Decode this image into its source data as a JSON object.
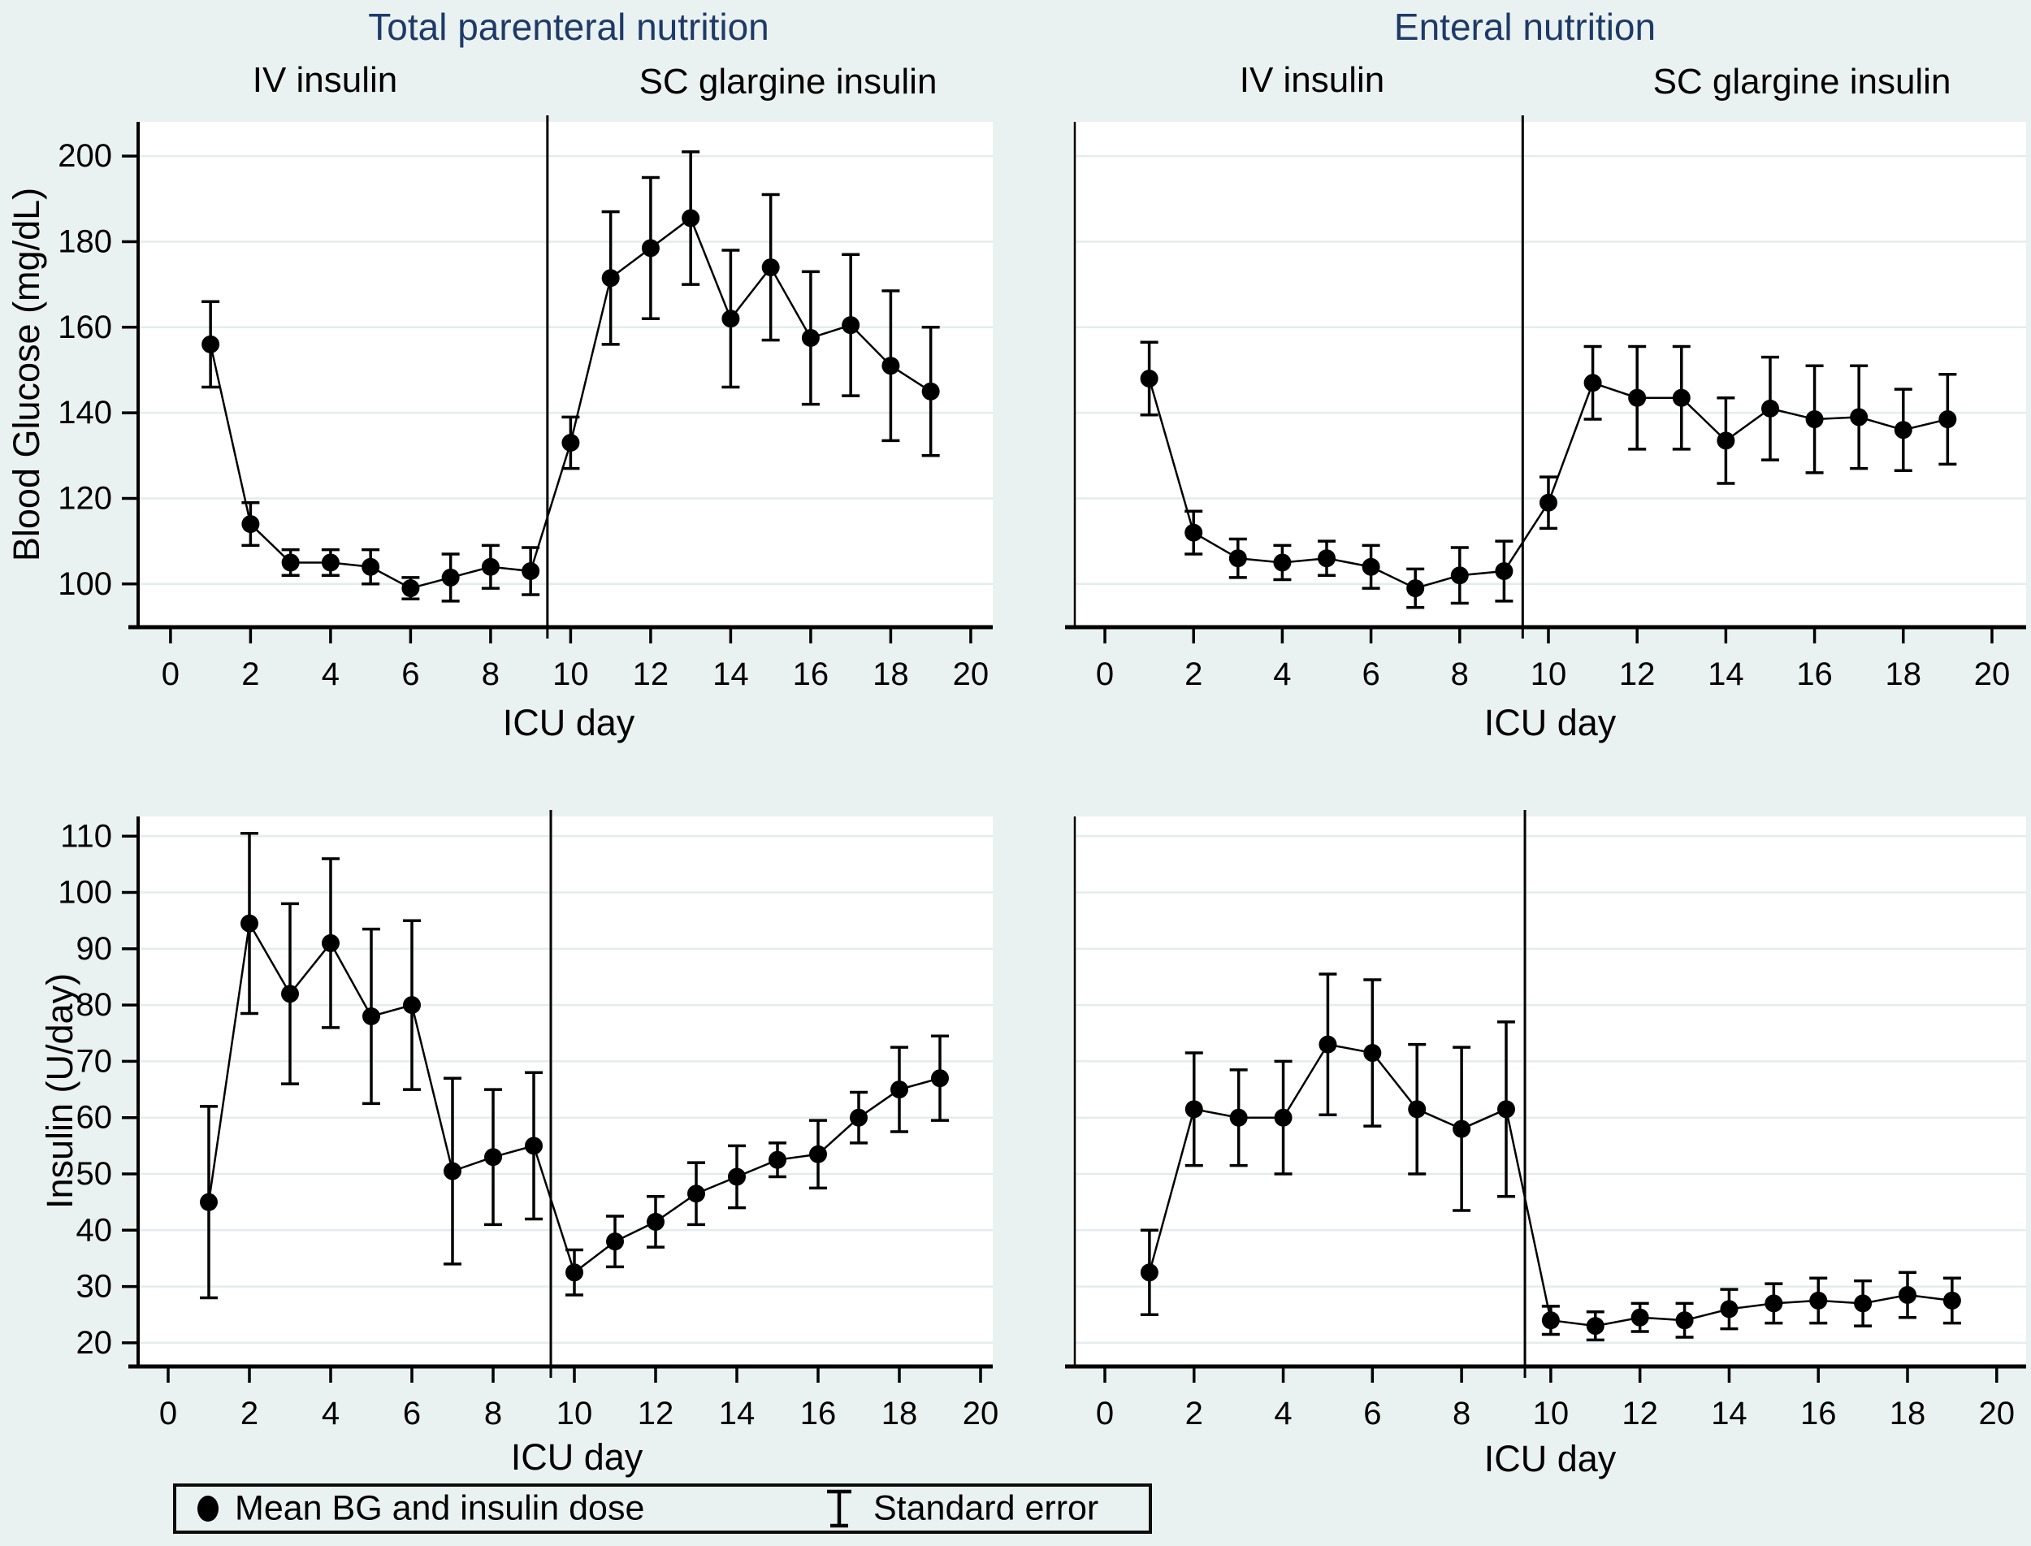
{
  "page": {
    "background": "#eaf2f1",
    "plot_background": "#ffffff",
    "grid_color": "#e3edec",
    "title_color": "#1d3a68",
    "series_color": "#000000"
  },
  "columns": [
    {
      "title": "Total parenteral nutrition"
    },
    {
      "title": "Enteral nutrition"
    }
  ],
  "legend": {
    "marker_label": "Mean BG and insulin dose",
    "error_label": "Standard error"
  },
  "chart_data": [
    {
      "id": "tpn-blood-glucose",
      "type": "line",
      "group": "Total parenteral nutrition",
      "phase_iv": "IV insulin",
      "phase_sc": "SC glargine insulin",
      "xlabel": "ICU day",
      "ylabel": "Blood Glucose (mg/dL)",
      "x": [
        1,
        2,
        3,
        4,
        5,
        6,
        7,
        8,
        9,
        10,
        11,
        12,
        13,
        14,
        15,
        16,
        17,
        18,
        19
      ],
      "y": [
        156,
        114,
        105,
        105,
        104,
        99,
        101.5,
        104,
        103,
        133,
        171.5,
        178.5,
        185.5,
        162,
        174,
        157.5,
        160.5,
        151,
        145
      ],
      "se": [
        10,
        5,
        3,
        3,
        4,
        2.5,
        5.5,
        5,
        5.5,
        6,
        15.5,
        16.5,
        15.5,
        16,
        17,
        15.5,
        16.5,
        17.5,
        15
      ],
      "xticks": [
        0,
        2,
        4,
        6,
        8,
        10,
        12,
        14,
        16,
        18,
        20
      ],
      "yticks": [
        100,
        120,
        140,
        160,
        180,
        200
      ],
      "xlim": [
        -0.81,
        20.55
      ],
      "ylim": [
        89.9,
        208
      ],
      "divider_x": 9.42,
      "show_ytick_labels": true,
      "grid": true,
      "legend_position": "bottom-left"
    },
    {
      "id": "enteral-blood-glucose",
      "type": "line",
      "group": "Enteral nutrition",
      "phase_iv": "IV insulin",
      "phase_sc": "SC glargine insulin",
      "xlabel": "ICU day",
      "ylabel": "Blood Glucose (mg/dL)",
      "x": [
        1,
        2,
        3,
        4,
        5,
        6,
        7,
        8,
        9,
        10,
        11,
        12,
        13,
        14,
        15,
        16,
        17,
        18,
        19
      ],
      "y": [
        148,
        112,
        106,
        105,
        106,
        104,
        99,
        102,
        103,
        119,
        147,
        143.5,
        143.5,
        133.5,
        141,
        138.5,
        139,
        136,
        138.5
      ],
      "se": [
        8.5,
        5,
        4.5,
        4,
        4,
        5,
        4.5,
        6.5,
        7,
        6,
        8.5,
        12,
        12,
        10,
        12,
        12.5,
        12,
        9.5,
        10.5
      ],
      "xticks": [
        0,
        2,
        4,
        6,
        8,
        10,
        12,
        14,
        16,
        18,
        20
      ],
      "yticks": [
        100,
        120,
        140,
        160,
        180,
        200
      ],
      "xlim": [
        -0.678,
        20.77
      ],
      "ylim": [
        89.9,
        208
      ],
      "divider_x": 9.42,
      "show_ytick_labels": false,
      "grid": true
    },
    {
      "id": "tpn-insulin",
      "type": "line",
      "group": "Total parenteral nutrition",
      "xlabel": "ICU day",
      "ylabel": "Insulin (U/day)",
      "x": [
        1,
        2,
        3,
        4,
        5,
        6,
        7,
        8,
        9,
        10,
        11,
        12,
        13,
        14,
        15,
        16,
        17,
        18,
        19
      ],
      "y": [
        45,
        94.5,
        82,
        91,
        78,
        80,
        50.5,
        53,
        55,
        32.5,
        38,
        41.5,
        46.5,
        49.5,
        52.5,
        53.5,
        60,
        65,
        67
      ],
      "se": [
        17,
        16,
        16,
        15,
        15.5,
        15,
        16.5,
        12,
        13,
        4,
        4.5,
        4.5,
        5.5,
        5.5,
        3,
        6,
        4.5,
        7.5,
        7.5
      ],
      "xticks": [
        0,
        2,
        4,
        6,
        8,
        10,
        12,
        14,
        16,
        18,
        20
      ],
      "yticks": [
        20,
        30,
        40,
        50,
        60,
        70,
        80,
        90,
        100,
        110
      ],
      "xlim": [
        -0.74,
        20.3
      ],
      "ylim": [
        15.8,
        113.5
      ],
      "divider_x": 9.42,
      "show_ytick_labels": true,
      "grid": true
    },
    {
      "id": "enteral-insulin",
      "type": "line",
      "group": "Enteral nutrition",
      "xlabel": "ICU day",
      "ylabel": "Insulin (U/day)",
      "x": [
        1,
        2,
        3,
        4,
        5,
        6,
        7,
        8,
        9,
        10,
        11,
        12,
        13,
        14,
        15,
        16,
        17,
        18,
        19
      ],
      "y": [
        32.5,
        61.5,
        60,
        60,
        73,
        71.5,
        61.5,
        58,
        61.5,
        24,
        23,
        24.5,
        24,
        26,
        27,
        27.5,
        27,
        28.5,
        27.5
      ],
      "se": [
        7.5,
        10,
        8.5,
        10,
        12.5,
        13,
        11.5,
        14.5,
        15.5,
        2.5,
        2.5,
        2.5,
        3,
        3.5,
        3.5,
        4,
        4,
        4,
        4
      ],
      "xticks": [
        0,
        2,
        4,
        6,
        8,
        10,
        12,
        14,
        16,
        18,
        20
      ],
      "yticks": [
        20,
        30,
        40,
        50,
        60,
        70,
        80,
        90,
        100,
        110
      ],
      "xlim": [
        -0.674,
        20.66
      ],
      "ylim": [
        15.8,
        113.5
      ],
      "divider_x": 9.42,
      "show_ytick_labels": false,
      "grid": true
    }
  ]
}
